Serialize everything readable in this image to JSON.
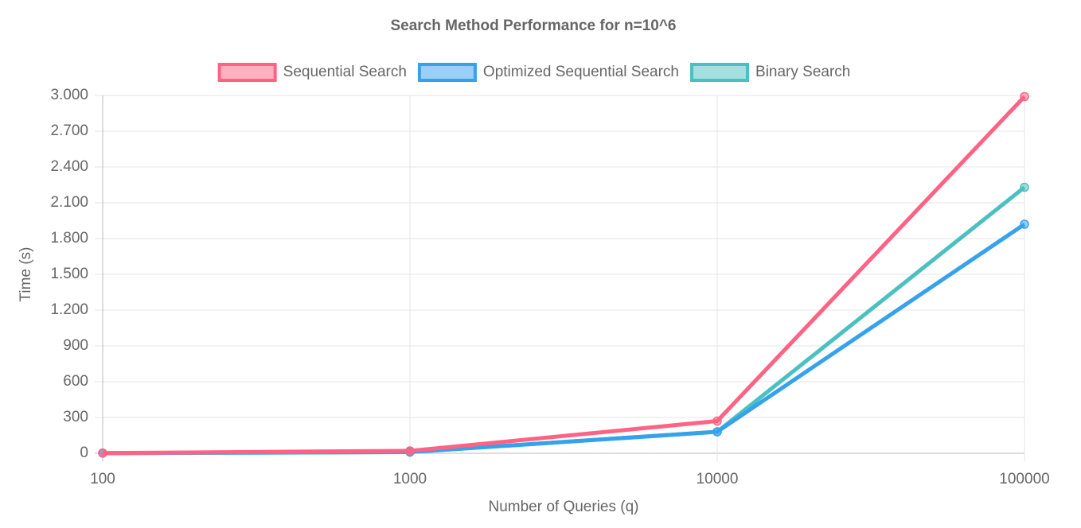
{
  "chart_data": {
    "type": "line",
    "title": "Search Method Performance for n=10^6",
    "x_label": "Number of Queries (q)",
    "y_label": "Time (s)",
    "categories": [
      "100",
      "1000",
      "10000",
      "100000"
    ],
    "series": [
      {
        "name": "Sequential Search",
        "color": "#ff6384",
        "values": [
          2,
          20,
          270,
          2990
        ]
      },
      {
        "name": "Optimized Sequential Search",
        "color": "#36a2eb",
        "values": [
          1,
          10,
          180,
          1920
        ]
      },
      {
        "name": "Binary Search",
        "color": "#4bc0c0",
        "values": [
          1,
          10,
          180,
          2230
        ]
      }
    ],
    "ylim": [
      0,
      3000
    ],
    "yticks": [
      0,
      300,
      600,
      900,
      {
        "value": 1200,
        "label": "1.200"
      },
      {
        "value": 1500,
        "label": "1.500"
      },
      {
        "value": 1800,
        "label": "1.800"
      },
      {
        "value": 2100,
        "label": "2.100"
      },
      {
        "value": 2400,
        "label": "2.400"
      },
      {
        "value": 2700,
        "label": "2.700"
      },
      {
        "value": 3000,
        "label": "3.000"
      }
    ],
    "grid": true,
    "legend": "top"
  }
}
